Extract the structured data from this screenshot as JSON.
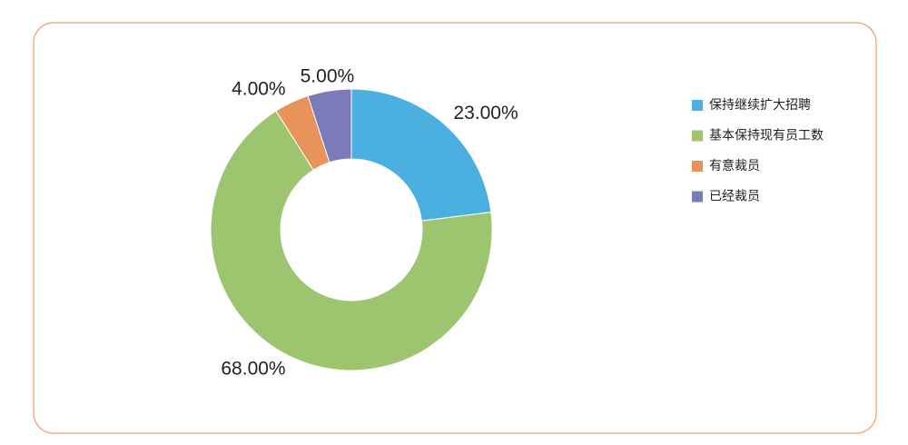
{
  "chart_data": {
    "type": "donut",
    "categories": [
      "保持继续扩大招聘",
      "基本保持现有员工数",
      "有意裁员",
      "已经裁员"
    ],
    "values": [
      23,
      68,
      4,
      5
    ],
    "value_labels": [
      "23.00%",
      "68.00%",
      "4.00%",
      "5.00%"
    ],
    "colors": [
      "#4bafe0",
      "#9dc46f",
      "#e8935a",
      "#7a7bb8"
    ],
    "legend": "right"
  }
}
